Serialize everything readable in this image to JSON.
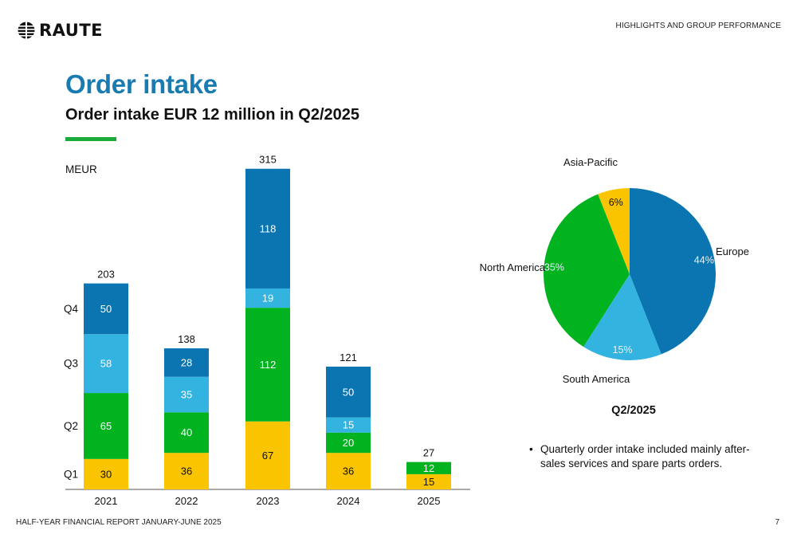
{
  "header": {
    "logo_text": "RAUTE",
    "section_label": "HIGHLIGHTS AND GROUP PERFORMANCE"
  },
  "title": "Order intake",
  "subtitle": "Order intake EUR 12 million in Q2/2025",
  "footer": {
    "left": "HALF-YEAR FINANCIAL REPORT JANUARY-JUNE 2025",
    "page_number": "7"
  },
  "bullet": "Quarterly order intake included mainly after-sales services and spare parts orders.",
  "colors": {
    "brand_blue": "#1a7bb0",
    "accent_green": "#1aab3a",
    "q1": "#fbc400",
    "q2": "#00b31f",
    "q3": "#33b3e0",
    "q4": "#0a75b0"
  },
  "chart_data": [
    {
      "type": "bar",
      "stacked": true,
      "unit_label": "MEUR",
      "categories": [
        "2021",
        "2022",
        "2023",
        "2024",
        "2025"
      ],
      "series": [
        {
          "name": "Q1",
          "color": "#fbc400",
          "values": [
            30,
            36,
            67,
            36,
            15
          ]
        },
        {
          "name": "Q2",
          "color": "#00b31f",
          "values": [
            65,
            40,
            112,
            20,
            12
          ]
        },
        {
          "name": "Q3",
          "color": "#33b3e0",
          "values": [
            58,
            35,
            19,
            15,
            null
          ]
        },
        {
          "name": "Q4",
          "color": "#0a75b0",
          "values": [
            50,
            28,
            118,
            50,
            null
          ]
        }
      ],
      "totals": [
        203,
        138,
        315,
        121,
        27
      ],
      "ylim": [
        0,
        315
      ],
      "legend_placement": "left, beside 2021 bar"
    },
    {
      "type": "pie",
      "title": "Q2/2025",
      "slices": [
        {
          "label": "Europe",
          "value": 44,
          "text": "44%",
          "color": "#0a75b0"
        },
        {
          "label": "South America",
          "value": 15,
          "text": "15%",
          "color": "#33b3e0"
        },
        {
          "label": "North America",
          "value": 35,
          "text": "35%",
          "color": "#00b31f"
        },
        {
          "label": "Asia-Pacific",
          "value": 6,
          "text": "6%",
          "color": "#fbc400"
        }
      ]
    }
  ]
}
